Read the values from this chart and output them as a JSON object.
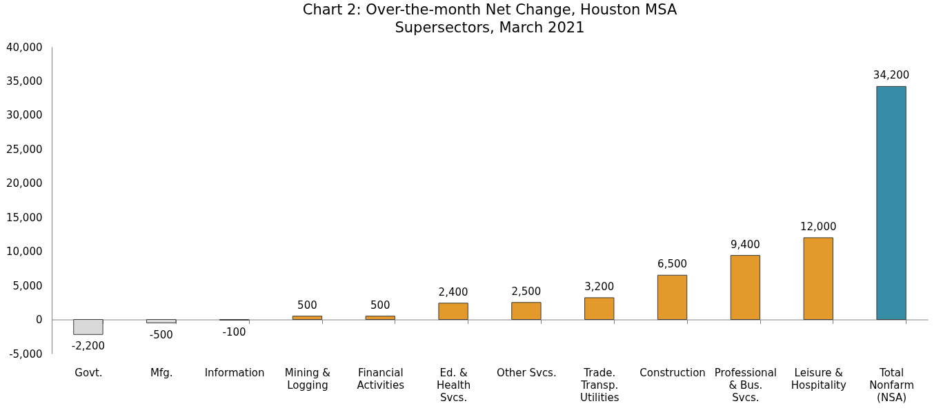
{
  "chart_data": {
    "type": "bar",
    "title": "Chart 2: Over-the-month Net Change, Houston MSA Supersectors, March 2021",
    "categories": [
      "Govt.",
      "Mfg.",
      "Information",
      "Mining & Logging",
      "Financial Activities",
      "Ed. & Health Svcs.",
      "Other Svcs.",
      "Trade. Transp. Utilities",
      "Construction",
      "Professional & Bus. Svcs.",
      "Leisure & Hospitality",
      "Total Nonfarm (NSA)"
    ],
    "values": [
      -2200,
      -500,
      -100,
      500,
      500,
      2400,
      2500,
      3200,
      6500,
      9400,
      12000,
      34200
    ],
    "value_labels": [
      "-2,200",
      "-500",
      "-100",
      "500",
      "500",
      "2,400",
      "2,500",
      "3,200",
      "6,500",
      "9,400",
      "12,000",
      "34,200"
    ],
    "colors": [
      "#d9d9d9",
      "#d9d9d9",
      "#d9d9d9",
      "#e39a2b",
      "#e39a2b",
      "#e39a2b",
      "#e39a2b",
      "#e39a2b",
      "#e39a2b",
      "#e39a2b",
      "#e39a2b",
      "#368da5"
    ],
    "ylim": [
      -5000,
      40000
    ],
    "yticks": [
      {
        "value": -5000,
        "label": "-5,000"
      },
      0,
      {
        "value": 5000,
        "label": "5,000"
      },
      {
        "value": 10000,
        "label": "10,000"
      },
      {
        "value": 15000,
        "label": "15,000"
      },
      {
        "value": 20000,
        "label": "20,000"
      },
      {
        "value": 25000,
        "label": "25,000"
      },
      {
        "value": 30000,
        "label": "30,000"
      },
      {
        "value": 35000,
        "label": "35,000"
      },
      {
        "value": 40000,
        "label": "40,000"
      }
    ]
  }
}
